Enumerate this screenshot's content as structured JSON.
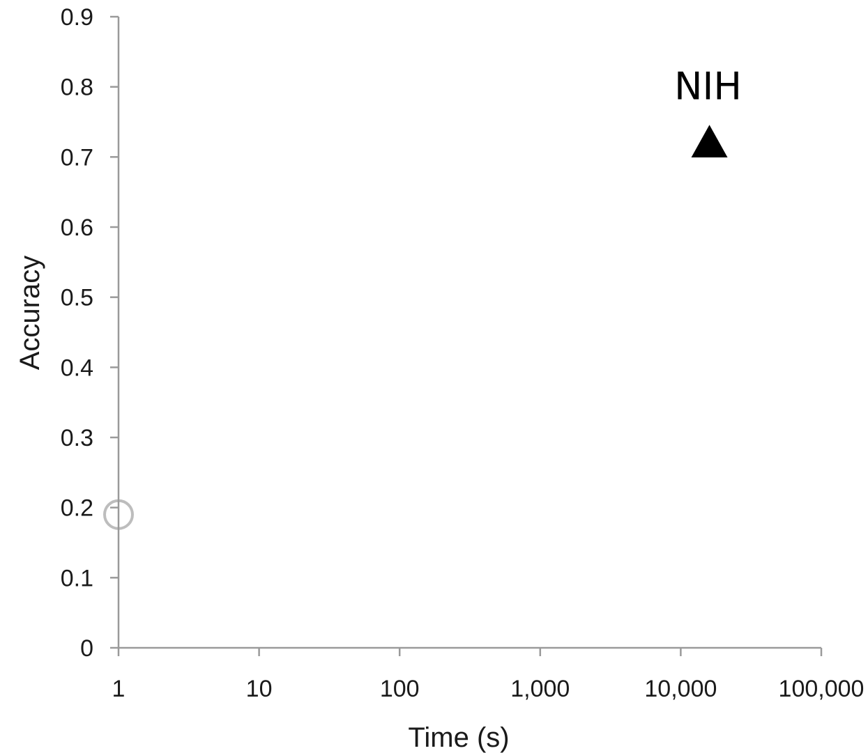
{
  "chart_data": {
    "type": "scatter",
    "xlabel": "Time (s)",
    "ylabel": "Accuracy",
    "xscale": "log",
    "xlim": [
      1,
      100000
    ],
    "ylim": [
      0,
      0.9
    ],
    "x_ticks": [
      "1",
      "10",
      "100",
      "1,000",
      "10,000",
      "100,000"
    ],
    "x_tick_values": [
      1,
      10,
      100,
      1000,
      10000,
      100000
    ],
    "y_ticks": [
      "0",
      "0.1",
      "0.2",
      "0.3",
      "0.4",
      "0.5",
      "0.6",
      "0.7",
      "0.8",
      "0.9"
    ],
    "y_tick_values": [
      0,
      0.1,
      0.2,
      0.3,
      0.4,
      0.5,
      0.6,
      0.7,
      0.8,
      0.9
    ],
    "grid": false,
    "legend": "none",
    "points": [
      {
        "label": "NIH",
        "x": 16000,
        "y": 0.72,
        "marker": "triangle",
        "color": "#000000"
      },
      {
        "label": "",
        "x": 1,
        "y": 0.19,
        "marker": "circle-outline",
        "color": "#bdbdbd"
      }
    ],
    "annotations": [
      {
        "text": "NIH",
        "x": 16000,
        "y": 0.8
      }
    ],
    "colors": {
      "axis": "#9a9a9a",
      "text": "#1a1a1a",
      "marker": "#000000",
      "faint_marker": "#bdbdbd"
    }
  }
}
